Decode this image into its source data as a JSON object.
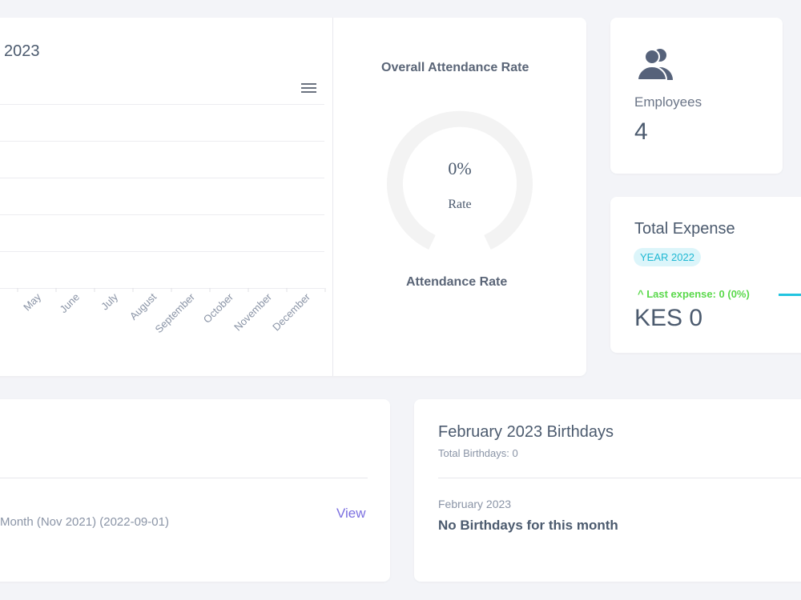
{
  "attendance_chart": {
    "title": "2023",
    "months": [
      "May",
      "June",
      "July",
      "August",
      "September",
      "October",
      "November",
      "December"
    ]
  },
  "attendance_rate": {
    "title": "Overall Attendance Rate",
    "value_text": "0%",
    "caption": "Rate",
    "footer": "Attendance Rate"
  },
  "employees": {
    "label": "Employees",
    "count": "4"
  },
  "expense": {
    "title": "Total Expense",
    "badge": "YEAR 2022",
    "trend": "Last expense: 0 (0%)",
    "amount": "KES 0"
  },
  "notice": {
    "item": "Month (Nov 2021) (2022-09-01)",
    "action": "View"
  },
  "birthdays": {
    "title": "February 2023 Birthdays",
    "subtitle": "Total Birthdays: 0",
    "month": "February 2023",
    "message": "No Birthdays for this month"
  }
}
